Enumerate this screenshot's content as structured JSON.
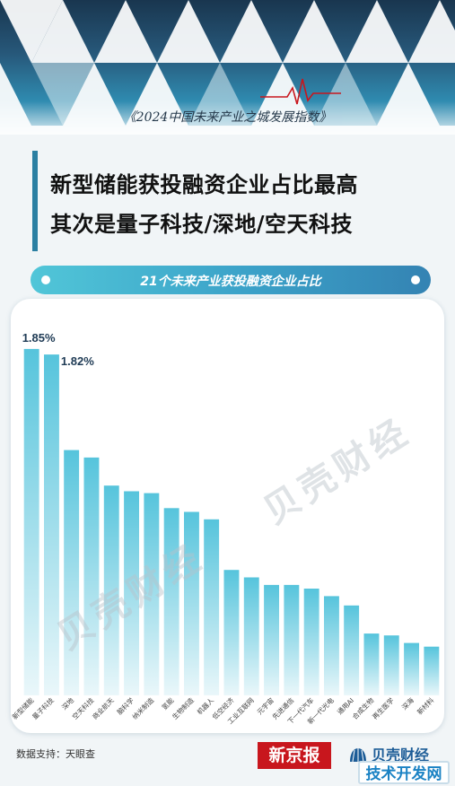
{
  "source_title": "《2024中国未来产业之城发展指数》",
  "headline": {
    "line1": "新型储能获投融资企业占比最高",
    "line2": "其次是量子科技/深地/空天科技"
  },
  "chart_title": "21个未来产业获投融资企业占比",
  "chart_data": {
    "type": "bar",
    "title": "21个未来产业获投融资企业占比",
    "unit": "%",
    "categories": [
      "新型储能",
      "量子科技",
      "深地",
      "空天科技",
      "商业航天",
      "脑科学",
      "纳米制造",
      "氢能",
      "生物制造",
      "机器人",
      "低空经济",
      "工业互联网",
      "元宇宙",
      "先进通信",
      "下一代汽车",
      "新一代光电",
      "通用AI",
      "合成生物",
      "再生医学",
      "深海",
      "新材料"
    ],
    "values": [
      1.85,
      1.82,
      1.31,
      1.27,
      1.12,
      1.09,
      1.08,
      1.0,
      0.98,
      0.94,
      0.67,
      0.63,
      0.59,
      0.59,
      0.57,
      0.53,
      0.48,
      0.33,
      0.32,
      0.28,
      0.26
    ],
    "data_labels": {
      "0": "1.85%",
      "1": "1.82%"
    },
    "ylim": [
      0,
      1.95
    ],
    "grid": false,
    "color_top": "#56c4dc",
    "color_bottom": "#eaf7fa"
  },
  "watermark_text": "贝壳财经",
  "footer": {
    "data_support": "数据支持：天眼查",
    "logo_xjb": "新京报",
    "logo_bk": "贝壳财经",
    "site_mark": "技术开发网"
  },
  "colors": {
    "accent": "#2b7fa2",
    "brand_red": "#c8161d",
    "brand_blue": "#1c5c97"
  }
}
